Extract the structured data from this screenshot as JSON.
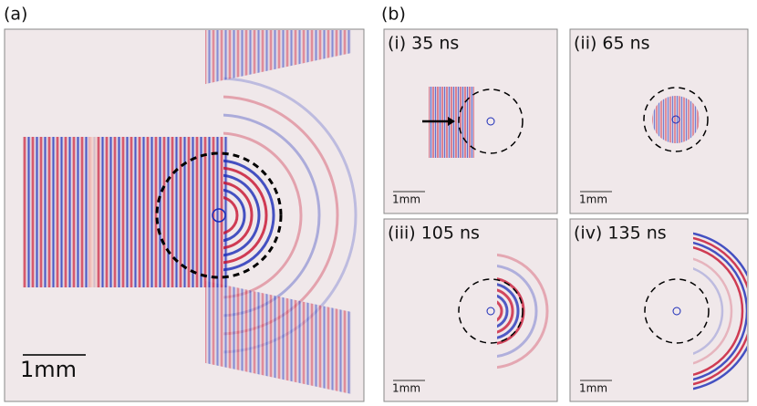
{
  "panel_a": {
    "label": "(a)",
    "scale_bar": "1mm"
  },
  "panel_b": {
    "label": "(b)",
    "subpanels": [
      {
        "label": "(i) 35 ns",
        "scale_bar": "1mm"
      },
      {
        "label": "(ii) 65 ns",
        "scale_bar": "1mm"
      },
      {
        "label": "(iii) 105 ns",
        "scale_bar": "1mm"
      },
      {
        "label": "(iv) 135 ns",
        "scale_bar": "1mm"
      }
    ]
  }
}
